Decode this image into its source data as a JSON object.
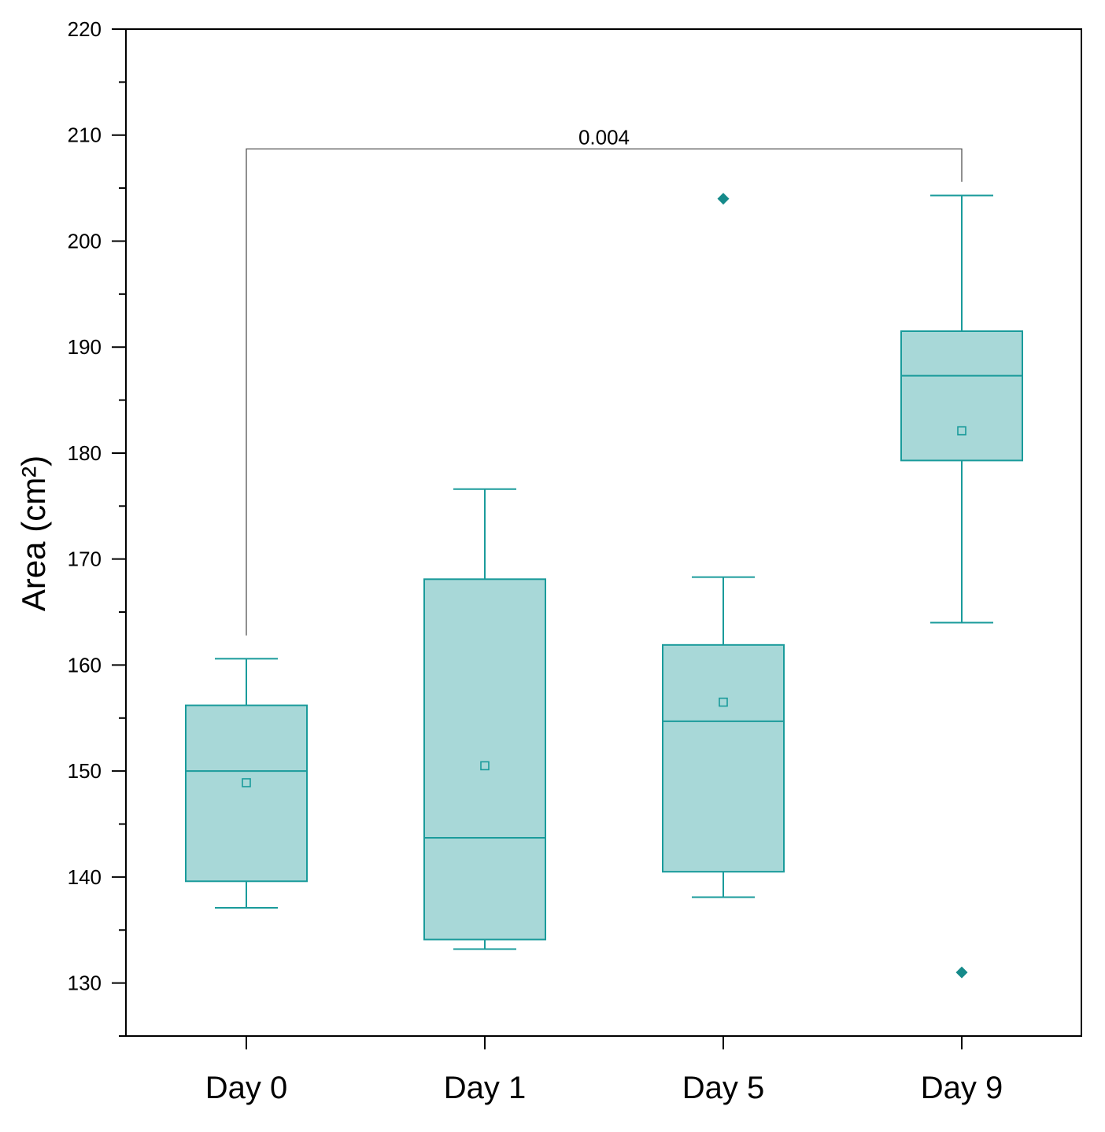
{
  "chart_data": {
    "type": "box",
    "ylabel": "Area (cm²)",
    "xlabel": "",
    "ylim": [
      125,
      220
    ],
    "yticks": [
      130,
      140,
      150,
      160,
      170,
      180,
      190,
      200,
      210,
      220
    ],
    "categories": [
      "Day 0",
      "Day 1",
      "Day 5",
      "Day 9"
    ],
    "boxes": [
      {
        "category": "Day 0",
        "whisker_low": 137.1,
        "q1": 139.6,
        "median": 150.0,
        "q3": 156.2,
        "whisker_high": 160.6,
        "mean": 148.9,
        "outliers": []
      },
      {
        "category": "Day 1",
        "whisker_low": 133.2,
        "q1": 134.1,
        "median": 143.7,
        "q3": 168.1,
        "whisker_high": 176.6,
        "mean": 150.5,
        "outliers": []
      },
      {
        "category": "Day 5",
        "whisker_low": 138.1,
        "q1": 140.5,
        "median": 154.7,
        "q3": 161.9,
        "whisker_high": 168.3,
        "mean": 156.5,
        "outliers": [
          204.0
        ]
      },
      {
        "category": "Day 9",
        "whisker_low": 164.0,
        "q1": 179.3,
        "median": 187.3,
        "q3": 191.5,
        "whisker_high": 204.3,
        "mean": 182.1,
        "outliers": [
          131.0
        ]
      }
    ],
    "annotation": {
      "text": "0.004",
      "from_category": "Day 0",
      "to_category": "Day 9",
      "bracket_y": 208.7,
      "left_bottom": 162.8,
      "right_bottom": 205.6
    },
    "colors": {
      "box_fill": "#a8d8d8",
      "box_stroke": "#1a9b9b",
      "outlier": "#158a8a",
      "axis": "#000000",
      "bracket": "#555555"
    }
  }
}
